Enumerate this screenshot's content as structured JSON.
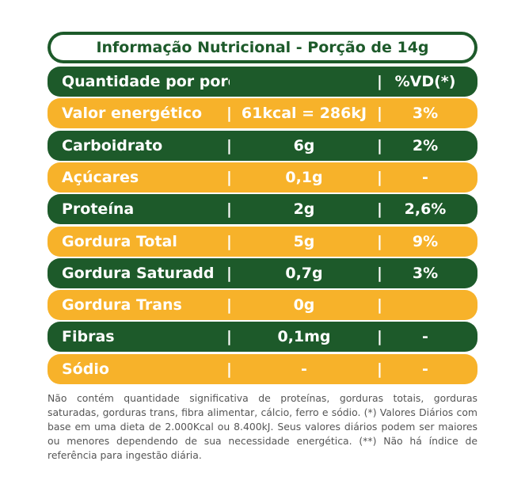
{
  "header": {
    "title": "Informação Nutricional - Porção de 14g"
  },
  "table": {
    "head": {
      "label": "Quantidade por porção",
      "dv": "%VD(*)"
    },
    "rows": [
      {
        "label": "Valor energético",
        "amount": "61kcal = 286kJ",
        "dv": "3%"
      },
      {
        "label": "Carboidrato",
        "amount": "6g",
        "dv": "2%"
      },
      {
        "label": "Açúcares",
        "amount": "0,1g",
        "dv": "-"
      },
      {
        "label": "Proteína",
        "amount": "2g",
        "dv": "2,6%"
      },
      {
        "label": "Gordura Total",
        "amount": "5g",
        "dv": "9%"
      },
      {
        "label": "Gordura Saturadd",
        "amount": "0,7g",
        "dv": "3%"
      },
      {
        "label": "Gordura Trans",
        "amount": "0g"
      },
      {
        "label": "Fibras",
        "amount": "0,1mg",
        "dv": "-"
      },
      {
        "label": "Sódio",
        "amount": "-",
        "dv": "-"
      }
    ]
  },
  "footer": {
    "note": "Não contém quantidade significativa de proteínas, gorduras totais, gorduras saturadas, gorduras trans, fibra alimentar, cálcio, ferro e sódio. (*) Valores Diários com base em uma dieta de 2.000Kcal ou 8.400kJ. Seus valores diários podem ser maiores ou menores dependendo de sua necessidade energética. (**) Não há índice de referência para ingestão diária."
  }
}
